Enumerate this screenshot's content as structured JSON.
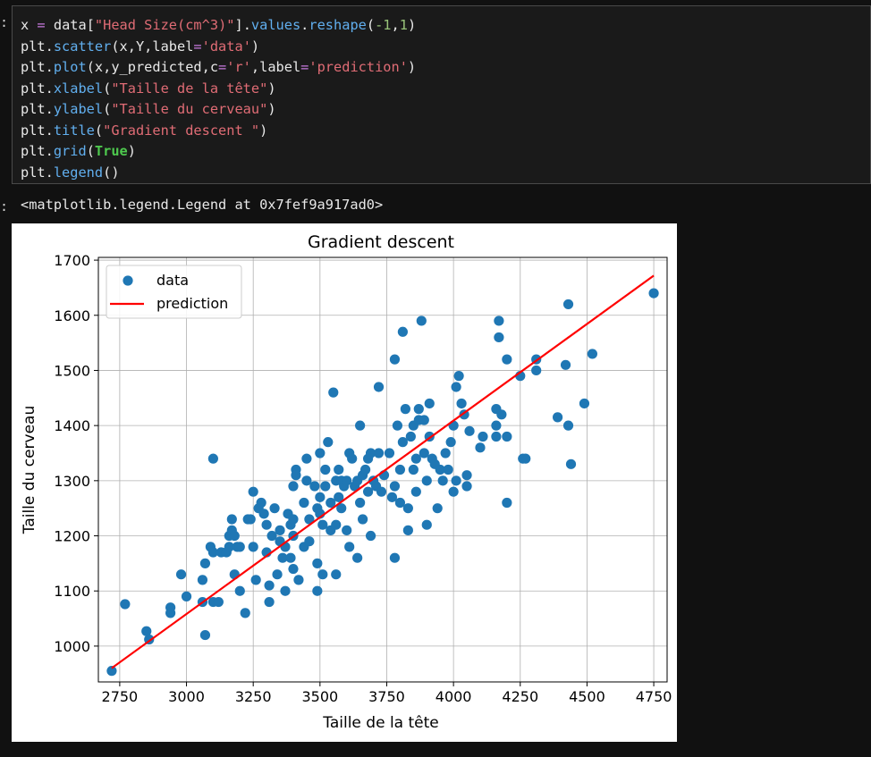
{
  "prompts": {
    "in": ":",
    "out": ":"
  },
  "code_lines": [
    [
      [
        "x",
        "t-var"
      ],
      [
        " = ",
        "t-op"
      ],
      [
        "data[",
        "t-var"
      ],
      [
        "\"Head Size(cm^3)\"",
        "t-str"
      ],
      [
        "].",
        "t-var"
      ],
      [
        "values",
        "t-func"
      ],
      [
        ".",
        "t-var"
      ],
      [
        "reshape",
        "t-func"
      ],
      [
        "(",
        "t-var"
      ],
      [
        "-1",
        "t-num"
      ],
      [
        ",",
        "t-var"
      ],
      [
        "1",
        "t-num"
      ],
      [
        ")",
        "t-var"
      ]
    ],
    [
      [
        "plt.",
        "t-var"
      ],
      [
        "scatter",
        "t-func"
      ],
      [
        "(x,Y,label",
        "t-var"
      ],
      [
        "=",
        "t-op"
      ],
      [
        "'data'",
        "t-str"
      ],
      [
        ")",
        "t-var"
      ]
    ],
    [
      [
        "plt.",
        "t-var"
      ],
      [
        "plot",
        "t-func"
      ],
      [
        "(x,y_predicted,c",
        "t-var"
      ],
      [
        "=",
        "t-op"
      ],
      [
        "'r'",
        "t-str"
      ],
      [
        ",label",
        "t-var"
      ],
      [
        "=",
        "t-op"
      ],
      [
        "'prediction'",
        "t-str"
      ],
      [
        ")",
        "t-var"
      ]
    ],
    [
      [
        "plt.",
        "t-var"
      ],
      [
        "xlabel",
        "t-func"
      ],
      [
        "(",
        "t-var"
      ],
      [
        "\"Taille de la tête\"",
        "t-str"
      ],
      [
        ")",
        "t-var"
      ]
    ],
    [
      [
        "plt.",
        "t-var"
      ],
      [
        "ylabel",
        "t-func"
      ],
      [
        "(",
        "t-var"
      ],
      [
        "\"Taille du cerveau\"",
        "t-str"
      ],
      [
        ")",
        "t-var"
      ]
    ],
    [
      [
        "plt.",
        "t-var"
      ],
      [
        "title",
        "t-func"
      ],
      [
        "(",
        "t-var"
      ],
      [
        "\"Gradient descent \"",
        "t-str"
      ],
      [
        ")",
        "t-var"
      ]
    ],
    [
      [
        "plt.",
        "t-var"
      ],
      [
        "grid",
        "t-func"
      ],
      [
        "(",
        "t-var"
      ],
      [
        "True",
        "t-kw"
      ],
      [
        ")",
        "t-var"
      ]
    ],
    [
      [
        "plt.",
        "t-var"
      ],
      [
        "legend",
        "t-func"
      ],
      [
        "()",
        "t-var"
      ]
    ]
  ],
  "output_text": "<matplotlib.legend.Legend at 0x7fef9a917ad0>",
  "chart_data": {
    "type": "scatter",
    "title": "Gradient descent",
    "xlabel": "Taille de la tête",
    "ylabel": "Taille du cerveau",
    "xlim": [
      2670,
      4800
    ],
    "ylim": [
      935,
      1705
    ],
    "xticks": [
      2750,
      3000,
      3250,
      3500,
      3750,
      4000,
      4250,
      4500,
      4750
    ],
    "yticks": [
      1000,
      1100,
      1200,
      1300,
      1400,
      1500,
      1600,
      1700
    ],
    "grid": true,
    "legend_position": "top-left",
    "colors": {
      "scatter": "#1f77b4",
      "line": "#ff0000"
    },
    "series": [
      {
        "name": "data",
        "kind": "scatter",
        "points": [
          [
            2720,
            955
          ],
          [
            2770,
            1076
          ],
          [
            2850,
            1027
          ],
          [
            2860,
            1012
          ],
          [
            2940,
            1070
          ],
          [
            2940,
            1060
          ],
          [
            2980,
            1130
          ],
          [
            3000,
            1090
          ],
          [
            3060,
            1120
          ],
          [
            3060,
            1080
          ],
          [
            3070,
            1150
          ],
          [
            3070,
            1020
          ],
          [
            3090,
            1180
          ],
          [
            3100,
            1340
          ],
          [
            3100,
            1170
          ],
          [
            3100,
            1080
          ],
          [
            3120,
            1080
          ],
          [
            3130,
            1170
          ],
          [
            3150,
            1170
          ],
          [
            3160,
            1200
          ],
          [
            3160,
            1180
          ],
          [
            3170,
            1230
          ],
          [
            3170,
            1210
          ],
          [
            3180,
            1200
          ],
          [
            3180,
            1130
          ],
          [
            3190,
            1180
          ],
          [
            3200,
            1180
          ],
          [
            3200,
            1100
          ],
          [
            3220,
            1060
          ],
          [
            3230,
            1230
          ],
          [
            3240,
            1230
          ],
          [
            3250,
            1280
          ],
          [
            3250,
            1180
          ],
          [
            3260,
            1120
          ],
          [
            3270,
            1250
          ],
          [
            3280,
            1260
          ],
          [
            3290,
            1240
          ],
          [
            3300,
            1220
          ],
          [
            3300,
            1170
          ],
          [
            3310,
            1110
          ],
          [
            3310,
            1080
          ],
          [
            3320,
            1200
          ],
          [
            3330,
            1250
          ],
          [
            3340,
            1130
          ],
          [
            3350,
            1210
          ],
          [
            3350,
            1190
          ],
          [
            3360,
            1160
          ],
          [
            3370,
            1180
          ],
          [
            3370,
            1100
          ],
          [
            3380,
            1240
          ],
          [
            3390,
            1220
          ],
          [
            3390,
            1160
          ],
          [
            3400,
            1290
          ],
          [
            3400,
            1230
          ],
          [
            3400,
            1200
          ],
          [
            3400,
            1140
          ],
          [
            3410,
            1320
          ],
          [
            3410,
            1310
          ],
          [
            3420,
            1120
          ],
          [
            3440,
            1260
          ],
          [
            3440,
            1180
          ],
          [
            3450,
            1340
          ],
          [
            3450,
            1300
          ],
          [
            3460,
            1230
          ],
          [
            3460,
            1190
          ],
          [
            3480,
            1290
          ],
          [
            3490,
            1250
          ],
          [
            3490,
            1150
          ],
          [
            3490,
            1100
          ],
          [
            3500,
            1350
          ],
          [
            3500,
            1270
          ],
          [
            3500,
            1240
          ],
          [
            3510,
            1220
          ],
          [
            3510,
            1130
          ],
          [
            3520,
            1320
          ],
          [
            3520,
            1290
          ],
          [
            3530,
            1370
          ],
          [
            3540,
            1260
          ],
          [
            3540,
            1210
          ],
          [
            3550,
            1460
          ],
          [
            3560,
            1300
          ],
          [
            3560,
            1220
          ],
          [
            3560,
            1130
          ],
          [
            3570,
            1320
          ],
          [
            3570,
            1270
          ],
          [
            3580,
            1300
          ],
          [
            3580,
            1250
          ],
          [
            3590,
            1290
          ],
          [
            3600,
            1300
          ],
          [
            3600,
            1210
          ],
          [
            3610,
            1350
          ],
          [
            3610,
            1180
          ],
          [
            3620,
            1340
          ],
          [
            3630,
            1290
          ],
          [
            3640,
            1300
          ],
          [
            3640,
            1160
          ],
          [
            3650,
            1400
          ],
          [
            3650,
            1260
          ],
          [
            3660,
            1310
          ],
          [
            3660,
            1230
          ],
          [
            3670,
            1320
          ],
          [
            3680,
            1340
          ],
          [
            3680,
            1280
          ],
          [
            3690,
            1350
          ],
          [
            3690,
            1200
          ],
          [
            3700,
            1300
          ],
          [
            3710,
            1290
          ],
          [
            3720,
            1470
          ],
          [
            3720,
            1350
          ],
          [
            3730,
            1280
          ],
          [
            3740,
            1310
          ],
          [
            3760,
            1350
          ],
          [
            3770,
            1270
          ],
          [
            3780,
            1520
          ],
          [
            3780,
            1290
          ],
          [
            3780,
            1160
          ],
          [
            3790,
            1400
          ],
          [
            3800,
            1320
          ],
          [
            3800,
            1260
          ],
          [
            3810,
            1570
          ],
          [
            3810,
            1370
          ],
          [
            3820,
            1430
          ],
          [
            3830,
            1250
          ],
          [
            3830,
            1210
          ],
          [
            3840,
            1380
          ],
          [
            3850,
            1400
          ],
          [
            3850,
            1320
          ],
          [
            3860,
            1340
          ],
          [
            3860,
            1280
          ],
          [
            3870,
            1430
          ],
          [
            3870,
            1410
          ],
          [
            3880,
            1590
          ],
          [
            3890,
            1410
          ],
          [
            3890,
            1350
          ],
          [
            3900,
            1300
          ],
          [
            3900,
            1220
          ],
          [
            3910,
            1440
          ],
          [
            3910,
            1380
          ],
          [
            3920,
            1340
          ],
          [
            3930,
            1330
          ],
          [
            3940,
            1250
          ],
          [
            3950,
            1320
          ],
          [
            3960,
            1300
          ],
          [
            3970,
            1350
          ],
          [
            3980,
            1320
          ],
          [
            3990,
            1370
          ],
          [
            4000,
            1400
          ],
          [
            4000,
            1280
          ],
          [
            4010,
            1470
          ],
          [
            4010,
            1300
          ],
          [
            4020,
            1490
          ],
          [
            4030,
            1440
          ],
          [
            4040,
            1420
          ],
          [
            4050,
            1290
          ],
          [
            4050,
            1310
          ],
          [
            4060,
            1390
          ],
          [
            4100,
            1360
          ],
          [
            4110,
            1380
          ],
          [
            4160,
            1430
          ],
          [
            4160,
            1400
          ],
          [
            4160,
            1380
          ],
          [
            4170,
            1560
          ],
          [
            4170,
            1590
          ],
          [
            4180,
            1420
          ],
          [
            4200,
            1520
          ],
          [
            4200,
            1380
          ],
          [
            4200,
            1260
          ],
          [
            4250,
            1490
          ],
          [
            4260,
            1340
          ],
          [
            4270,
            1340
          ],
          [
            4310,
            1520
          ],
          [
            4310,
            1500
          ],
          [
            4390,
            1415
          ],
          [
            4420,
            1510
          ],
          [
            4430,
            1400
          ],
          [
            4430,
            1620
          ],
          [
            4440,
            1330
          ],
          [
            4490,
            1440
          ],
          [
            4520,
            1530
          ],
          [
            4750,
            1640
          ]
        ]
      },
      {
        "name": "prediction",
        "kind": "line",
        "points": [
          [
            2720,
            960
          ],
          [
            4750,
            1672
          ]
        ]
      }
    ]
  }
}
